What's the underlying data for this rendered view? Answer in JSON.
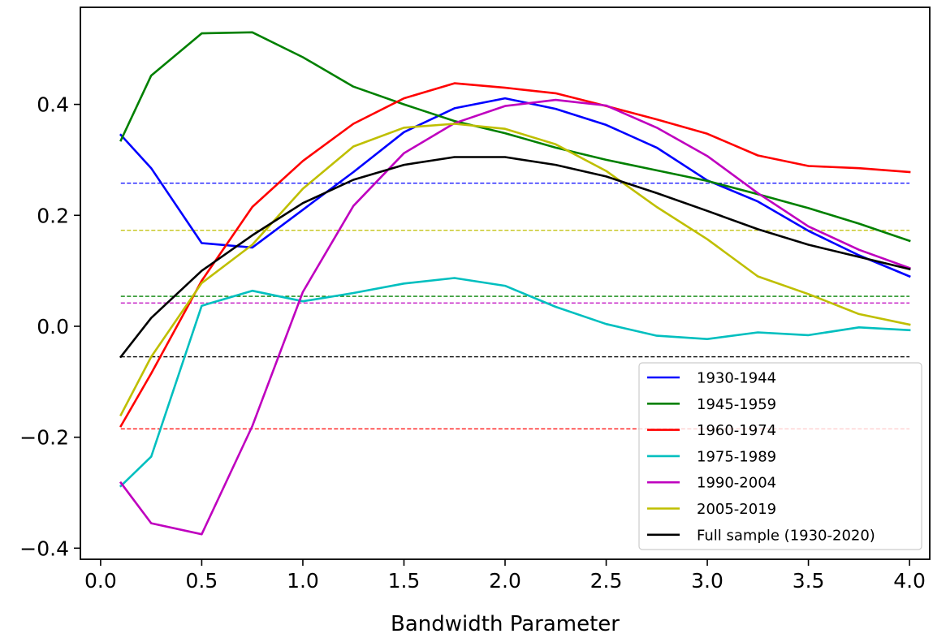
{
  "chart_data": {
    "type": "line",
    "title": "",
    "xlabel": "Bandwidth Parameter",
    "ylabel": "",
    "xlim": [
      -0.1,
      4.1
    ],
    "ylim": [
      -0.42,
      0.575
    ],
    "xticks": [
      0.0,
      0.5,
      1.0,
      1.5,
      2.0,
      2.5,
      3.0,
      3.5,
      4.0
    ],
    "xtick_labels": [
      "0.0",
      "0.5",
      "1.0",
      "1.5",
      "2.0",
      "2.5",
      "3.0",
      "3.5",
      "4.0"
    ],
    "yticks": [
      -0.4,
      -0.2,
      0.0,
      0.2,
      0.4
    ],
    "ytick_labels": [
      "−0.4",
      "−0.2",
      "0.0",
      "0.2",
      "0.4"
    ],
    "grid": false,
    "legend_position": "lower-right",
    "x": [
      0.1,
      0.25,
      0.5,
      0.75,
      1.0,
      1.25,
      1.5,
      1.75,
      2.0,
      2.25,
      2.5,
      2.75,
      3.0,
      3.25,
      3.5,
      3.75,
      4.0
    ],
    "series": [
      {
        "name": "1930-1944",
        "color": "#0000ff",
        "baseline": 0.258,
        "values": [
          0.345,
          0.285,
          0.15,
          0.142,
          0.21,
          0.278,
          0.35,
          0.393,
          0.411,
          0.392,
          0.363,
          0.322,
          0.263,
          0.225,
          0.172,
          0.128,
          0.09
        ]
      },
      {
        "name": "1945-1959",
        "color": "#008000",
        "baseline": 0.054,
        "values": [
          0.335,
          0.452,
          0.528,
          0.53,
          0.485,
          0.432,
          0.4,
          0.37,
          0.348,
          0.322,
          0.3,
          0.281,
          0.262,
          0.238,
          0.213,
          0.185,
          0.154
        ]
      },
      {
        "name": "1960-1974",
        "color": "#ff0000",
        "baseline": -0.185,
        "values": [
          -0.18,
          -0.085,
          0.082,
          0.215,
          0.298,
          0.365,
          0.411,
          0.438,
          0.43,
          0.42,
          0.397,
          0.373,
          0.347,
          0.308,
          0.289,
          0.285,
          0.278
        ]
      },
      {
        "name": "1975-1989",
        "color": "#00bfbf",
        "baseline": null,
        "values": [
          -0.288,
          -0.235,
          0.037,
          0.064,
          0.045,
          0.06,
          0.077,
          0.087,
          0.073,
          0.035,
          0.004,
          -0.017,
          -0.023,
          -0.011,
          -0.016,
          -0.002,
          -0.007
        ]
      },
      {
        "name": "1990-2004",
        "color": "#bf00bf",
        "baseline": 0.042,
        "values": [
          -0.282,
          -0.355,
          -0.375,
          -0.18,
          0.062,
          0.217,
          0.312,
          0.366,
          0.397,
          0.408,
          0.398,
          0.358,
          0.307,
          0.24,
          0.18,
          0.138,
          0.105
        ]
      },
      {
        "name": "2005-2019",
        "color": "#bfbf00",
        "baseline": 0.173,
        "values": [
          -0.16,
          -0.055,
          0.078,
          0.147,
          0.248,
          0.324,
          0.358,
          0.365,
          0.356,
          0.328,
          0.28,
          0.215,
          0.157,
          0.09,
          0.058,
          0.022,
          0.003
        ]
      },
      {
        "name": "Full sample (1930-2020)",
        "color": "#000000",
        "baseline": -0.055,
        "values": [
          -0.055,
          0.015,
          0.1,
          0.164,
          0.222,
          0.264,
          0.291,
          0.305,
          0.305,
          0.291,
          0.27,
          0.24,
          0.208,
          0.175,
          0.147,
          0.125,
          0.103
        ]
      }
    ]
  }
}
